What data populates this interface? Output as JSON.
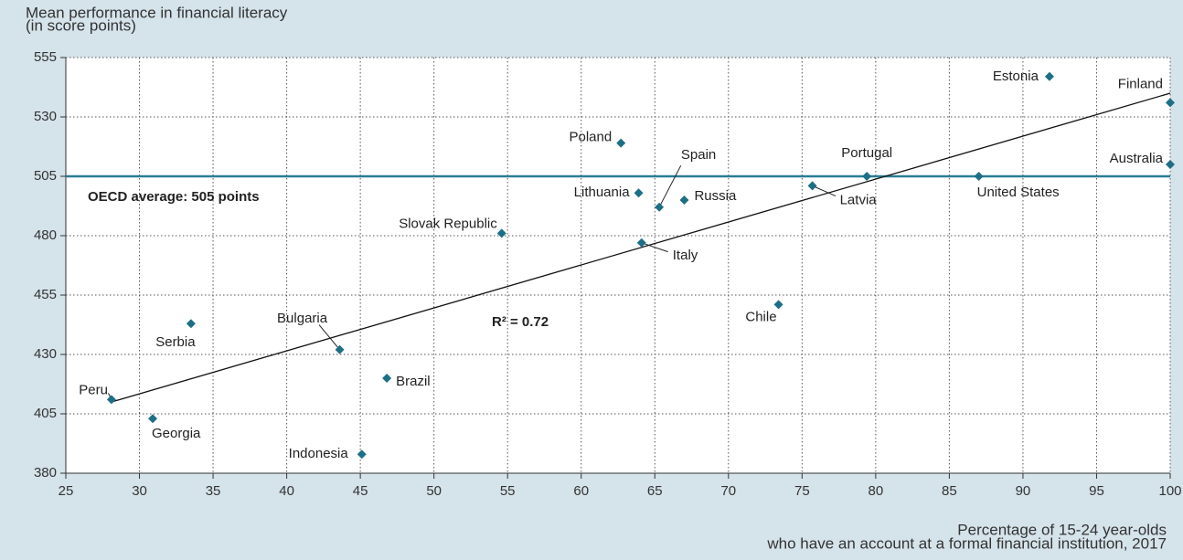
{
  "chart_data": {
    "type": "scatter",
    "y_title": [
      "Mean performance in financial literacy",
      "(in score points)"
    ],
    "x_title": [
      "Percentage of 15-24 year-olds",
      "who have an account at a formal financial institution, 2017"
    ],
    "xlim": [
      25,
      100
    ],
    "xticks": [
      25,
      30,
      35,
      40,
      45,
      50,
      55,
      60,
      65,
      70,
      75,
      80,
      85,
      90,
      95,
      100
    ],
    "ylim": [
      380,
      555
    ],
    "yticks": [
      380,
      405,
      430,
      455,
      480,
      505,
      530,
      555
    ],
    "grid": true,
    "color": "#1d6f86",
    "reference": {
      "value": 505,
      "label": "OECD average: 505 points",
      "color": "#2b7c95"
    },
    "trend": {
      "x": [
        28.1,
        100
      ],
      "y": [
        410,
        540
      ],
      "label": "R² = 0.72"
    },
    "points": {
      "names": [
        "Estonia",
        "Finland",
        "Australia",
        "United States",
        "Portugal",
        "Latvia",
        "Poland",
        "Spain",
        "Lithuania",
        "Russia",
        "Slovak Republic",
        "Italy",
        "Chile",
        "Serbia",
        "Bulgaria",
        "Brazil",
        "Peru",
        "Georgia",
        "Indonesia"
      ],
      "x": [
        91.8,
        100,
        100,
        87.0,
        79.4,
        75.7,
        62.7,
        65.3,
        63.9,
        67.0,
        54.6,
        64.1,
        73.4,
        33.5,
        43.6,
        46.8,
        28.1,
        30.9,
        45.1
      ],
      "y": [
        547,
        536,
        510,
        505,
        505,
        501,
        519,
        492,
        498,
        495,
        481,
        477,
        451,
        443,
        432,
        420,
        411,
        403,
        388
      ]
    }
  }
}
